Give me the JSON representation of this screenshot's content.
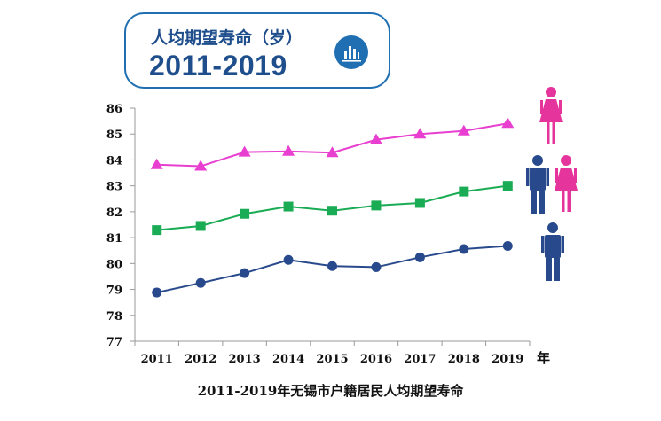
{
  "header": {
    "line1": "人均期望寿命（岁）",
    "line2": "2011-2019",
    "badge_icon": "bar-chart-icon"
  },
  "caption": "2011-2019年无锡市户籍居民人均期望寿命",
  "colors": {
    "female": "#e83fd0",
    "overall": "#1aac54",
    "male": "#284a8c",
    "female_icon": "#e6349d",
    "male_icon": "#284a8c",
    "header_accent": "#1f6fb2"
  },
  "legend_icons": [
    "female-figure-icon",
    "male-and-female-figures-icon",
    "male-figure-icon"
  ],
  "chart_data": {
    "type": "line",
    "categories": [
      "2011",
      "2012",
      "2013",
      "2014",
      "2015",
      "2016",
      "2017",
      "2018",
      "2019"
    ],
    "x_unit": "年",
    "ylim": [
      77,
      86
    ],
    "yticks": [
      77,
      78,
      79,
      80,
      81,
      82,
      83,
      84,
      85,
      86
    ],
    "grid": false,
    "series": [
      {
        "key": "female",
        "marker": "triangle",
        "values": [
          83.82,
          83.76,
          84.3,
          84.33,
          84.28,
          84.78,
          85.0,
          85.12,
          85.41
        ]
      },
      {
        "key": "overall",
        "marker": "square",
        "values": [
          81.29,
          81.45,
          81.92,
          82.2,
          82.04,
          82.24,
          82.34,
          82.78,
          83.0
        ]
      },
      {
        "key": "male",
        "marker": "circle",
        "values": [
          78.88,
          79.25,
          79.63,
          80.14,
          79.9,
          79.86,
          80.24,
          80.56,
          80.68
        ]
      }
    ]
  }
}
